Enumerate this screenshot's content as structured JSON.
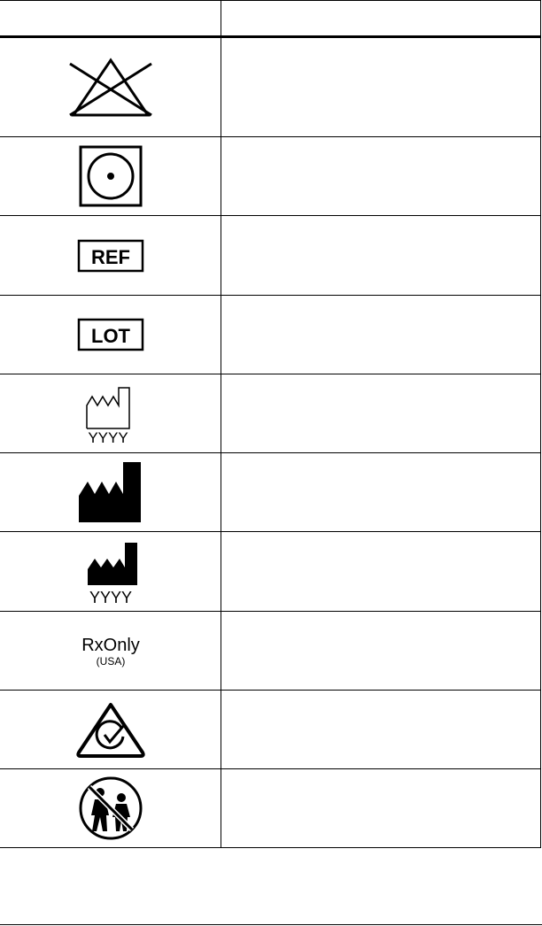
{
  "table": {
    "headers": [
      "",
      ""
    ],
    "rows": [
      {
        "icon": "do-not-bleach-icon",
        "description": ""
      },
      {
        "icon": "tumble-dry-icon",
        "description": ""
      },
      {
        "icon": "ref-catalog-number-icon",
        "label": "REF",
        "description": ""
      },
      {
        "icon": "lot-batch-code-icon",
        "label": "LOT",
        "description": ""
      },
      {
        "icon": "date-of-manufacture-icon",
        "label": "YYYY",
        "description": ""
      },
      {
        "icon": "manufacturer-icon",
        "description": ""
      },
      {
        "icon": "manufacturer-date-icon",
        "label": "YYYY",
        "description": ""
      },
      {
        "icon": "rx-only-icon",
        "label": "RxOnly",
        "sublabel": "(USA)",
        "description": ""
      },
      {
        "icon": "rcm-compliance-icon",
        "description": ""
      },
      {
        "icon": "keep-away-from-children-icon",
        "description": ""
      }
    ]
  }
}
